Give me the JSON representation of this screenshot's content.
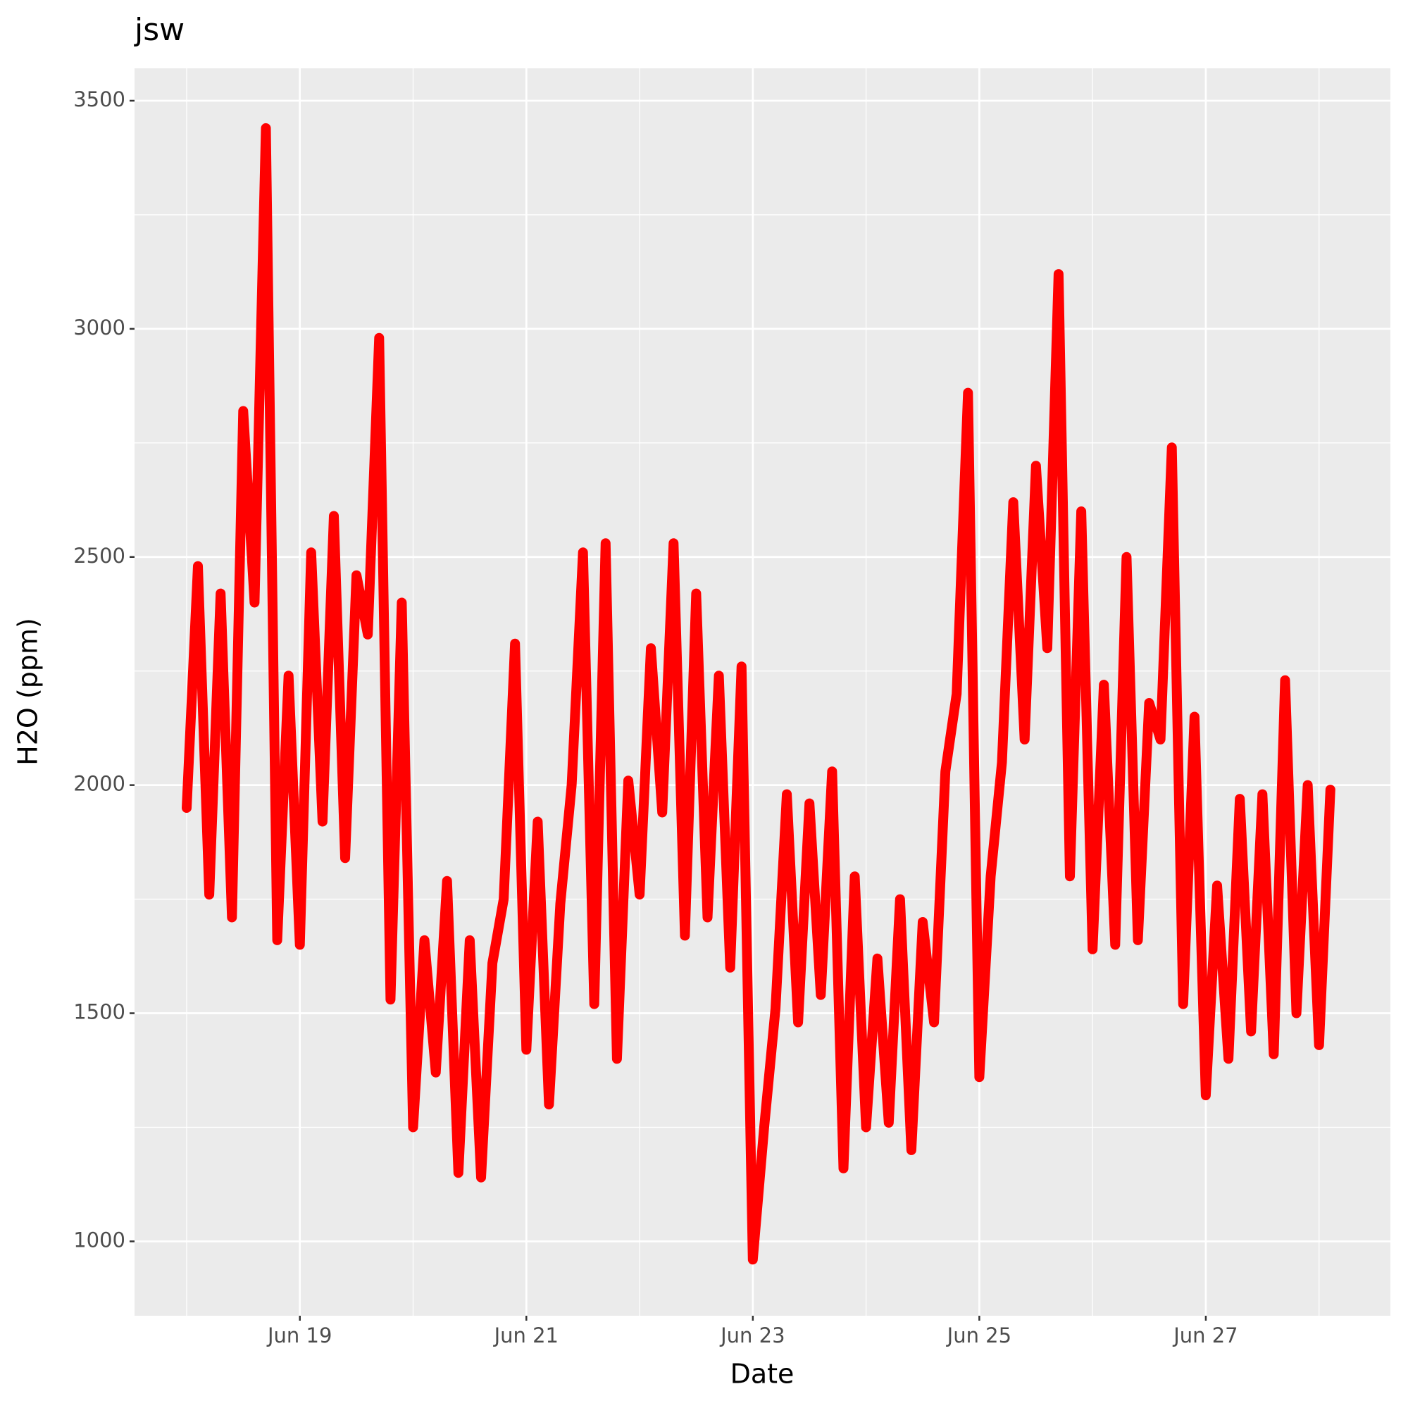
{
  "chart_data": {
    "type": "line",
    "title": "jsw",
    "x_label": "Date",
    "y_label": "H2O (ppm)",
    "x": [
      18.0,
      18.1,
      18.2,
      18.3,
      18.4,
      18.5,
      18.6,
      18.7,
      18.8,
      18.9,
      19.0,
      19.1,
      19.2,
      19.3,
      19.4,
      19.5,
      19.6,
      19.7,
      19.8,
      19.9,
      20.0,
      20.1,
      20.2,
      20.3,
      20.4,
      20.5,
      20.6,
      20.7,
      20.8,
      20.9,
      21.0,
      21.1,
      21.2,
      21.3,
      21.4,
      21.5,
      21.6,
      21.7,
      21.8,
      21.9,
      22.0,
      22.1,
      22.2,
      22.3,
      22.4,
      22.5,
      22.6,
      22.7,
      22.8,
      22.9,
      23.0,
      23.1,
      23.2,
      23.3,
      23.4,
      23.5,
      23.6,
      23.7,
      23.8,
      23.9,
      24.0,
      24.1,
      24.2,
      24.3,
      24.4,
      24.5,
      24.6,
      24.7,
      24.8,
      24.9,
      25.0,
      25.1,
      25.2,
      25.3,
      25.4,
      25.5,
      25.6,
      25.7,
      25.8,
      25.9,
      26.0,
      26.1,
      26.2,
      26.3,
      26.4,
      26.5,
      26.6,
      26.7,
      26.8,
      26.9,
      27.0,
      27.1,
      27.2,
      27.3,
      27.4,
      27.5,
      27.6,
      27.7,
      27.8,
      27.9,
      28.0,
      28.1
    ],
    "series": [
      {
        "name": "H2O",
        "color": "#ff0000",
        "values": [
          1950,
          2480,
          1760,
          2420,
          1710,
          2820,
          2400,
          3440,
          1660,
          2240,
          1650,
          2510,
          1920,
          2590,
          1840,
          2460,
          2330,
          2980,
          1530,
          2400,
          1250,
          1660,
          1370,
          1790,
          1150,
          1660,
          1140,
          1610,
          1750,
          2310,
          1420,
          1920,
          1300,
          1740,
          2000,
          2510,
          1520,
          2530,
          1400,
          2010,
          1760,
          2300,
          1940,
          2530,
          1670,
          2420,
          1710,
          2240,
          1600,
          2260,
          960,
          1250,
          1510,
          1980,
          1480,
          1960,
          1540,
          2030,
          1160,
          1800,
          1250,
          1620,
          1260,
          1750,
          1200,
          1700,
          1480,
          2030,
          2200,
          2860,
          1360,
          1800,
          2050,
          2620,
          2100,
          2700,
          2300,
          3120,
          1800,
          2600,
          1640,
          2220,
          1650,
          2500,
          1660,
          2180,
          2100,
          2740,
          1520,
          2150,
          1320,
          1780,
          1400,
          1970,
          1460,
          1980,
          1410,
          2230,
          1500,
          2000,
          1430,
          1990
        ]
      }
    ],
    "xlim": [
      17.54,
      28.63
    ],
    "xticks": [
      {
        "value": 19,
        "label": "Jun 19"
      },
      {
        "value": 21,
        "label": "Jun 21"
      },
      {
        "value": 23,
        "label": "Jun 23"
      },
      {
        "value": 25,
        "label": "Jun 25"
      },
      {
        "value": 27,
        "label": "Jun 27"
      }
    ],
    "x_minor_ticks": [
      18,
      20,
      22,
      24,
      26,
      28
    ],
    "ylim": [
      837,
      3571
    ],
    "yticks": [
      1000,
      1500,
      2000,
      2500,
      3000,
      3500
    ],
    "y_minor_ticks": [
      1250,
      1750,
      2250,
      2750,
      3250
    ],
    "grid": true
  }
}
